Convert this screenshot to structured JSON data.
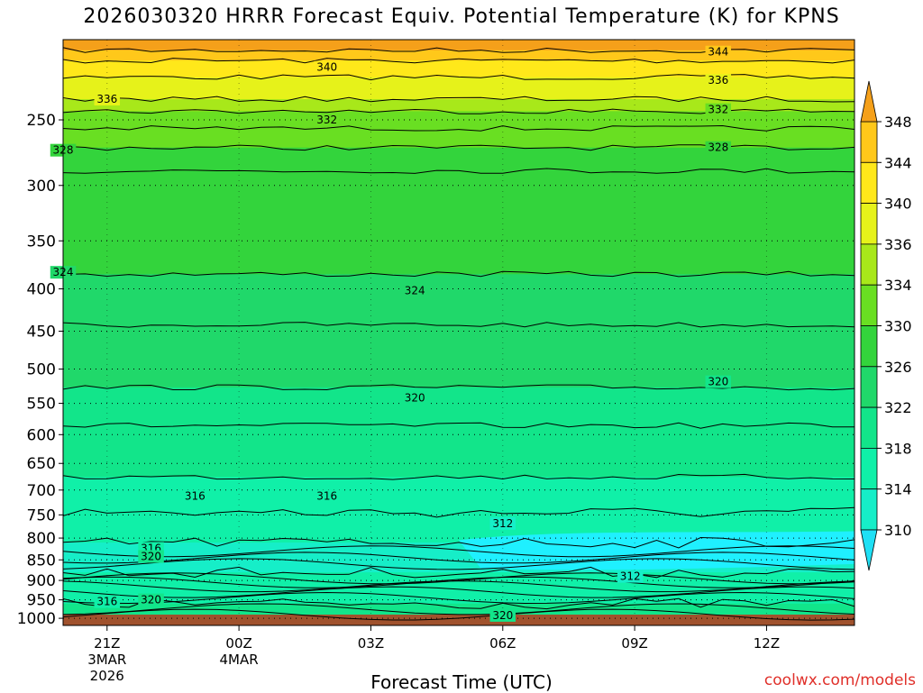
{
  "title": "2026030320 HRRR Forecast Equiv. Potential Temperature (K) for KPNS",
  "x_axis_title": "Forecast Time (UTC)",
  "credit": "coolwx.com/models",
  "chart_data": {
    "type": "heatmap",
    "title": "2026030320 HRRR Forecast Equiv. Potential Temperature (K) for KPNS",
    "xlabel": "Forecast Time (UTC)",
    "ylabel": "",
    "x_ticks": [
      {
        "label": "21Z",
        "sub": [
          "3MAR",
          "2026"
        ]
      },
      {
        "label": "00Z",
        "sub": [
          "4MAR"
        ]
      },
      {
        "label": "03Z",
        "sub": []
      },
      {
        "label": "06Z",
        "sub": []
      },
      {
        "label": "09Z",
        "sub": []
      },
      {
        "label": "12Z",
        "sub": []
      }
    ],
    "xlim_hours": [
      20,
      38
    ],
    "y_ticks": [
      250,
      300,
      350,
      400,
      450,
      500,
      550,
      600,
      650,
      700,
      750,
      800,
      850,
      900,
      950,
      1000
    ],
    "ylim": [
      1020,
      200
    ],
    "y_scale": "log-pressure",
    "grid": "dotted horizontal at each pressure level",
    "colorbar": {
      "labels": [
        310,
        314,
        318,
        322,
        326,
        330,
        334,
        336,
        340,
        344,
        348
      ],
      "colors": [
        "#1fe0f5",
        "#16eec8",
        "#10f0a8",
        "#12e58a",
        "#20d86a",
        "#33d43c",
        "#69df22",
        "#a8e81a",
        "#e6f21a",
        "#ffe81a",
        "#ffc81a",
        "#f5a01a"
      ],
      "extend": "both",
      "placement": "right"
    },
    "ground_color": "#a0522d",
    "contour_labels": [
      {
        "value": 344,
        "x_hour": 34.9,
        "pressure": 207
      },
      {
        "value": 340,
        "x_hour": 26.0,
        "pressure": 216
      },
      {
        "value": 336,
        "x_hour": 21.0,
        "pressure": 236
      },
      {
        "value": 336,
        "x_hour": 34.9,
        "pressure": 224
      },
      {
        "value": 332,
        "x_hour": 26.0,
        "pressure": 250
      },
      {
        "value": 332,
        "x_hour": 34.9,
        "pressure": 243
      },
      {
        "value": 328,
        "x_hour": 20.0,
        "pressure": 272
      },
      {
        "value": 328,
        "x_hour": 34.9,
        "pressure": 270
      },
      {
        "value": 324,
        "x_hour": 20.0,
        "pressure": 382
      },
      {
        "value": 324,
        "x_hour": 28.0,
        "pressure": 402
      },
      {
        "value": 320,
        "x_hour": 28.0,
        "pressure": 542
      },
      {
        "value": 320,
        "x_hour": 34.9,
        "pressure": 518
      },
      {
        "value": 316,
        "x_hour": 23.0,
        "pressure": 712
      },
      {
        "value": 316,
        "x_hour": 26.0,
        "pressure": 712
      },
      {
        "value": 312,
        "x_hour": 30.0,
        "pressure": 768
      },
      {
        "value": 316,
        "x_hour": 22.0,
        "pressure": 823
      },
      {
        "value": 320,
        "x_hour": 22.0,
        "pressure": 842
      },
      {
        "value": 312,
        "x_hour": 32.9,
        "pressure": 890
      },
      {
        "value": 316,
        "x_hour": 21.0,
        "pressure": 955
      },
      {
        "value": 320,
        "x_hour": 22.0,
        "pressure": 950
      },
      {
        "value": 320,
        "x_hour": 30.0,
        "pressure": 992
      }
    ],
    "bands": [
      {
        "value": 348,
        "top": 200,
        "bottom": 206
      },
      {
        "value": 344,
        "top": 206,
        "bottom": 212
      },
      {
        "value": 340,
        "top": 212,
        "bottom": 222
      },
      {
        "value": 336,
        "top": 222,
        "bottom": 236
      },
      {
        "value": 334,
        "top": 236,
        "bottom": 244
      },
      {
        "value": 332,
        "top": 244,
        "bottom": 256
      },
      {
        "value": 330,
        "top": 256,
        "bottom": 270
      },
      {
        "value": 328,
        "top": 270,
        "bottom": 288
      },
      {
        "value": 326,
        "top": 288,
        "bottom": 384
      },
      {
        "value": 324,
        "top": 384,
        "bottom": 442
      },
      {
        "value": 322,
        "top": 442,
        "bottom": 526
      },
      {
        "value": 320,
        "top": 526,
        "bottom": 585
      },
      {
        "value": 318,
        "top": 585,
        "bottom": 675
      },
      {
        "value": 316,
        "top": 675,
        "bottom": 745
      },
      {
        "value": 314,
        "top": 745,
        "bottom": 810
      },
      {
        "value": 312,
        "top": 810,
        "bottom": 880
      },
      {
        "value": 316,
        "top": 880,
        "bottom": 960
      },
      {
        "value": 320,
        "top": 960,
        "bottom": 1020
      }
    ]
  }
}
